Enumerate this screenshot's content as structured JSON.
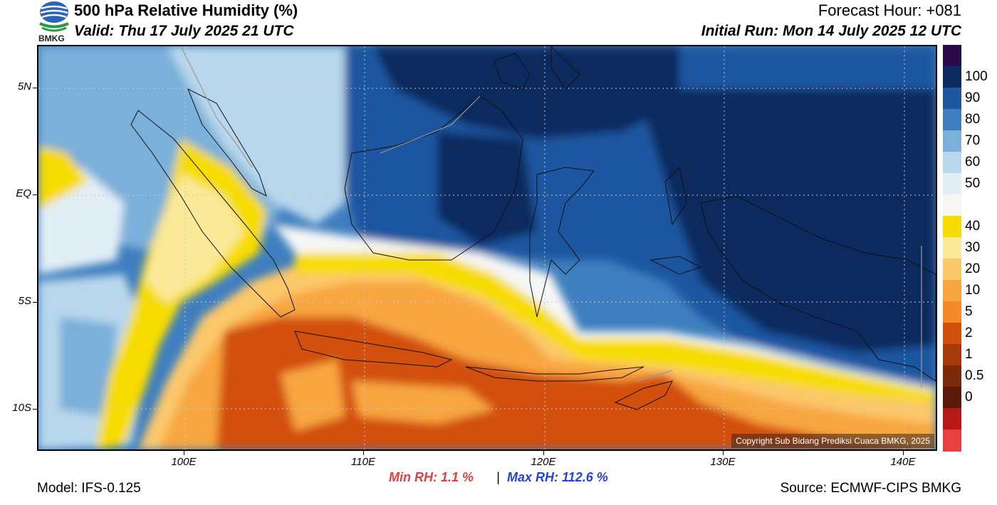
{
  "header": {
    "title": "500 hPa Relative Humidity (%)",
    "valid": "Valid: Thu 17 July 2025 21 UTC",
    "forecast_hour": "Forecast Hour: +081",
    "initial_run": "Initial Run: Mon 14 July 2025 12 UTC",
    "logo_text": "BMKG"
  },
  "map": {
    "copyright": "Copyright Sub Bidang Prediksi Cuaca BMKG, 2025",
    "lat_labels": [
      "5N",
      "EQ",
      "5S",
      "10S"
    ],
    "lon_labels": [
      "100E",
      "110E",
      "120E",
      "130E",
      "140E"
    ]
  },
  "colorbar": {
    "labels": [
      "100",
      "90",
      "80",
      "70",
      "60",
      "50",
      "40",
      "30",
      "20",
      "10",
      "5",
      "2",
      "1",
      "0.5",
      "0"
    ],
    "colors": [
      "#2a0a4a",
      "#0b2a5e",
      "#1f56a0",
      "#3f7fbf",
      "#7ab0d9",
      "#b9d7ec",
      "#e2eef6",
      "#f6f6f6",
      "#f7dc00",
      "#fbe99a",
      "#fbc86a",
      "#f8a640",
      "#f28a2a",
      "#d2500a",
      "#a63a0a",
      "#7a2a0a",
      "#5a1a0a",
      "#b81818",
      "#e84040"
    ]
  },
  "stats": {
    "min_rh": "Min RH:   1.1 %",
    "separator": "|",
    "max_rh": "Max RH: 112.6 %"
  },
  "footer": {
    "model": "Model: IFS-0.125",
    "source": "Source: ECMWF-CIPS BMKG"
  }
}
